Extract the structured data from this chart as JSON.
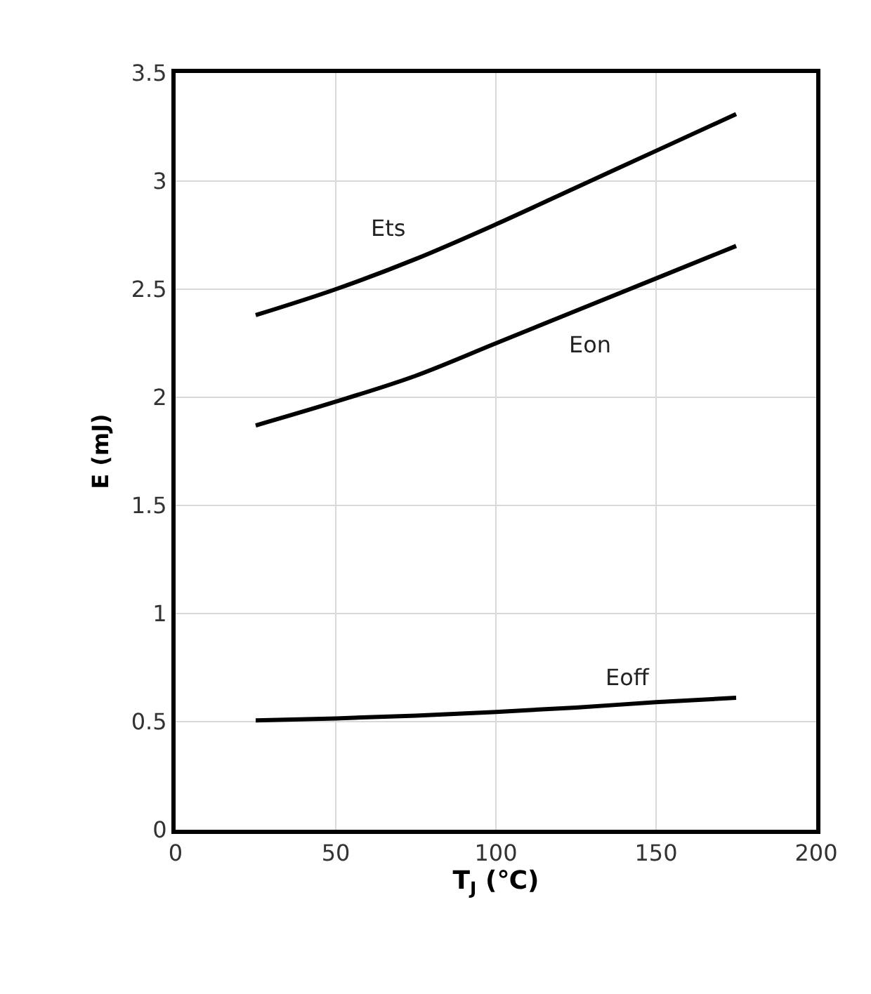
{
  "chart_data": {
    "type": "line",
    "xlabel": "T$_{J}$ (℃)",
    "ylabel": "E (mJ)",
    "series": [
      {
        "name": "Ets",
        "color": "#000000",
        "x": [
          25,
          50,
          75,
          100,
          125,
          150,
          175
        ],
        "values": [
          2.38,
          2.5,
          2.64,
          2.8,
          2.97,
          3.14,
          3.31
        ]
      },
      {
        "name": "Eon",
        "color": "#000000",
        "x": [
          25,
          50,
          75,
          100,
          125,
          150,
          175
        ],
        "values": [
          1.87,
          1.98,
          2.1,
          2.25,
          2.4,
          2.55,
          2.7
        ]
      },
      {
        "name": "Eoff",
        "color": "#000000",
        "x": [
          25,
          50,
          75,
          100,
          125,
          150,
          175
        ],
        "values": [
          0.506,
          0.515,
          0.528,
          0.545,
          0.565,
          0.59,
          0.61
        ]
      }
    ],
    "xlim": [
      0,
      200
    ],
    "xticks": [
      0,
      50,
      100,
      150,
      200
    ],
    "ylim": [
      0,
      3.5
    ],
    "yticks": [
      0,
      0.5,
      1,
      1.5,
      2,
      2.5,
      3,
      3.5
    ],
    "grid": true,
    "legend": false,
    "marker": "none",
    "line_style": "solid"
  }
}
